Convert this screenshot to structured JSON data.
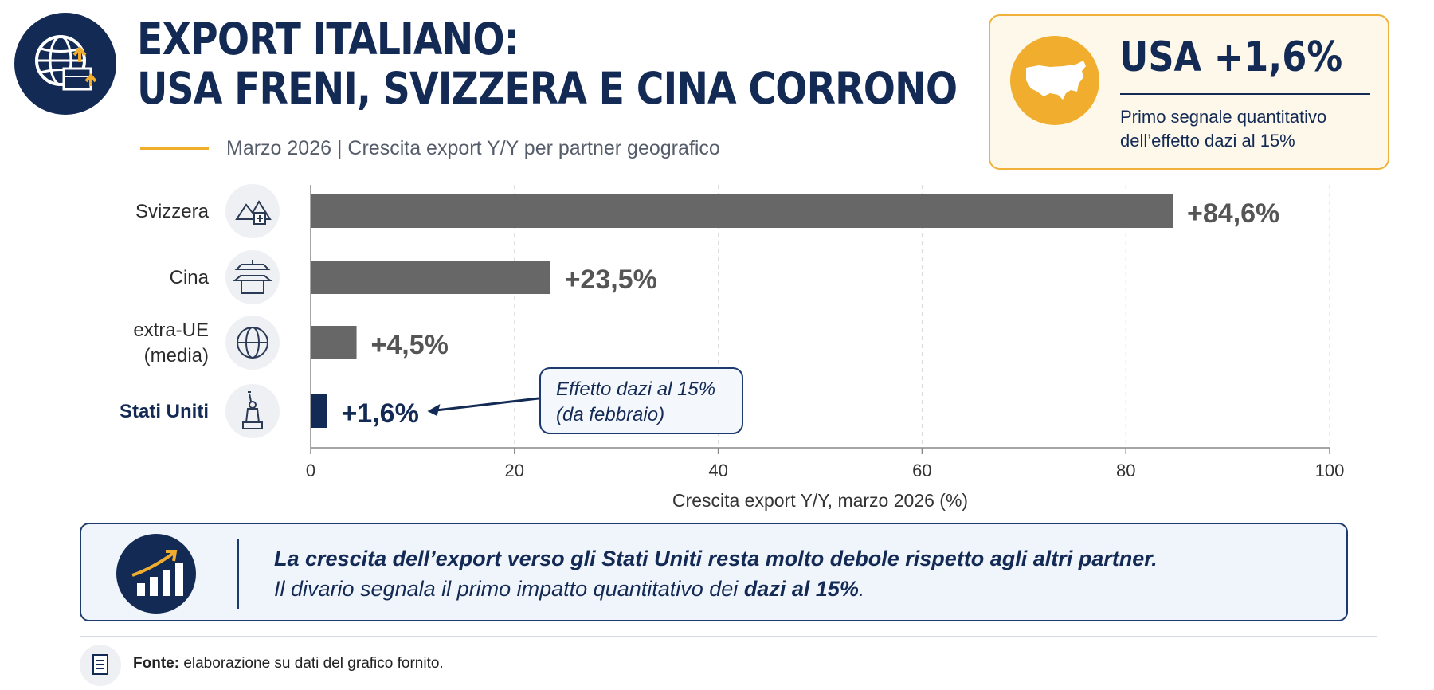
{
  "header": {
    "title_line1": "EXPORT ITALIANO:",
    "title_line2": "USA FRENI, SVIZZERA E CINA CORRONO",
    "subtitle": "Marzo 2026 | Crescita export Y/Y per partner geografico",
    "logo_icon": "globe-export-boxes-icon"
  },
  "callout": {
    "title": "USA +1,6%",
    "text": "Primo segnale quantitativo dell’effetto dazi al 15%",
    "icon": "usa-map-icon"
  },
  "chart_data": {
    "type": "bar",
    "orientation": "horizontal",
    "categories": [
      "Svizzera",
      "Cina",
      "extra-UE (media)",
      "Stati Uniti"
    ],
    "category_lines": [
      [
        "Svizzera"
      ],
      [
        "Cina"
      ],
      [
        "extra-UE",
        "(media)"
      ],
      [
        "Stati Uniti"
      ]
    ],
    "category_icons": [
      "mountains-swiss-cross-icon",
      "pagoda-icon",
      "globe-icon",
      "statue-of-liberty-icon"
    ],
    "values": [
      84.6,
      23.5,
      4.5,
      1.6
    ],
    "value_labels": [
      "+84,6%",
      "+23,5%",
      "+4,5%",
      "+1,6%"
    ],
    "highlight": "Stati Uniti",
    "xlabel": "Crescita export Y/Y, marzo 2026 (%)",
    "xlim": [
      0,
      100
    ],
    "xticks": [
      0,
      20,
      40,
      60,
      80,
      100
    ],
    "grid": "vertical dashed",
    "annotation": {
      "target": "Stati Uniti",
      "lines": [
        "Effetto dazi al 15%",
        "(da febbraio)"
      ]
    },
    "colors": {
      "bar": "#676767",
      "highlight": "#132a55",
      "accent": "#f0ad2e"
    }
  },
  "note": {
    "line1": "La crescita dell’export verso gli Stati Uniti resta molto debole rispetto agli altri partner.",
    "line2_prefix": "Il divario segnala il primo impatto quantitativo dei ",
    "line2_bold": "dazi al 15%",
    "line2_suffix": ".",
    "icon": "growth-chart-icon"
  },
  "footer": {
    "label": "Fonte:",
    "text": " elaborazione su dati del grafico fornito.",
    "icon": "document-icon"
  }
}
